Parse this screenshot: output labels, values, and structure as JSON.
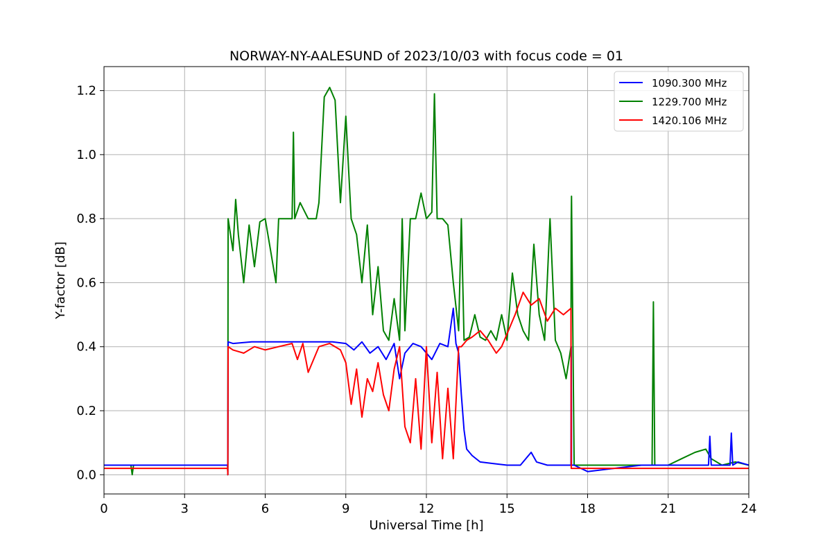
{
  "chart_data": {
    "type": "line",
    "title": "NORWAY-NY-AALESUND of 2023/10/03 with focus code = 01",
    "xlabel": "Universal Time [h]",
    "ylabel": "Y-factor [dB]",
    "xlim": [
      0,
      24
    ],
    "ylim": [
      -0.06,
      1.275
    ],
    "xticks": [
      0,
      3,
      6,
      9,
      12,
      15,
      18,
      21,
      24
    ],
    "yticks": [
      0.0,
      0.2,
      0.4,
      0.6,
      0.8,
      1.0,
      1.2
    ],
    "xtick_labels": [
      "0",
      "3",
      "6",
      "9",
      "12",
      "15",
      "18",
      "21",
      "24"
    ],
    "ytick_labels": [
      "0.0",
      "0.2",
      "0.4",
      "0.6",
      "0.8",
      "1.0",
      "1.2"
    ],
    "grid": true,
    "legend_position": "top-right",
    "series": [
      {
        "name": "1090.300 MHz",
        "color": "#0000ff",
        "x": [
          0.0,
          4.6,
          4.61,
          4.62,
          4.8,
          5.5,
          6.5,
          7.5,
          8.5,
          9.0,
          9.3,
          9.6,
          9.9,
          10.2,
          10.5,
          10.8,
          11.0,
          11.2,
          11.5,
          11.8,
          12.2,
          12.5,
          12.8,
          13.0,
          13.1,
          13.2,
          13.3,
          13.4,
          13.5,
          13.7,
          14.0,
          14.5,
          15.0,
          15.5,
          15.9,
          16.1,
          16.5,
          17.0,
          17.38,
          17.39,
          17.4,
          17.5,
          18.0,
          20.0,
          22.0,
          22.5,
          22.55,
          22.6,
          23.0,
          23.3,
          23.35,
          23.4,
          23.6,
          24.0
        ],
        "y": [
          0.03,
          0.03,
          0.0,
          0.415,
          0.41,
          0.415,
          0.415,
          0.415,
          0.415,
          0.41,
          0.39,
          0.415,
          0.38,
          0.4,
          0.36,
          0.41,
          0.3,
          0.38,
          0.41,
          0.4,
          0.36,
          0.41,
          0.4,
          0.52,
          0.41,
          0.38,
          0.25,
          0.14,
          0.08,
          0.06,
          0.04,
          0.035,
          0.03,
          0.03,
          0.07,
          0.04,
          0.03,
          0.03,
          0.03,
          0.4,
          0.03,
          0.03,
          0.01,
          0.03,
          0.03,
          0.03,
          0.12,
          0.03,
          0.03,
          0.03,
          0.13,
          0.03,
          0.04,
          0.03
        ]
      },
      {
        "name": "1229.700 MHz",
        "color": "#008000",
        "x": [
          0.0,
          1.0,
          1.05,
          1.1,
          4.6,
          4.61,
          4.62,
          4.8,
          4.9,
          5.0,
          5.2,
          5.4,
          5.6,
          5.8,
          6.0,
          6.2,
          6.4,
          6.5,
          6.6,
          6.8,
          7.0,
          7.05,
          7.1,
          7.3,
          7.6,
          7.9,
          8.0,
          8.2,
          8.4,
          8.6,
          8.8,
          9.0,
          9.2,
          9.4,
          9.6,
          9.8,
          10.0,
          10.2,
          10.4,
          10.6,
          10.8,
          11.0,
          11.1,
          11.2,
          11.4,
          11.6,
          11.8,
          12.0,
          12.2,
          12.3,
          12.4,
          12.5,
          12.6,
          12.8,
          13.0,
          13.2,
          13.3,
          13.4,
          13.6,
          13.8,
          14.0,
          14.2,
          14.4,
          14.6,
          14.8,
          15.0,
          15.2,
          15.4,
          15.6,
          15.8,
          16.0,
          16.2,
          16.4,
          16.6,
          16.8,
          17.0,
          17.2,
          17.38,
          17.39,
          17.4,
          17.5,
          18.0,
          20.0,
          20.35,
          20.4,
          20.45,
          20.5,
          21.0,
          21.5,
          22.0,
          22.4,
          22.6,
          23.0,
          23.5,
          24.0
        ],
        "y": [
          0.03,
          0.03,
          0.0,
          0.03,
          0.03,
          0.0,
          0.8,
          0.7,
          0.86,
          0.75,
          0.6,
          0.78,
          0.65,
          0.79,
          0.8,
          0.7,
          0.6,
          0.8,
          0.8,
          0.8,
          0.8,
          1.07,
          0.8,
          0.85,
          0.8,
          0.8,
          0.85,
          1.18,
          1.21,
          1.17,
          0.85,
          1.12,
          0.8,
          0.75,
          0.6,
          0.78,
          0.5,
          0.65,
          0.45,
          0.42,
          0.55,
          0.42,
          0.8,
          0.45,
          0.8,
          0.8,
          0.88,
          0.8,
          0.82,
          1.19,
          0.8,
          0.8,
          0.8,
          0.78,
          0.6,
          0.45,
          0.8,
          0.42,
          0.43,
          0.5,
          0.43,
          0.42,
          0.45,
          0.42,
          0.5,
          0.42,
          0.63,
          0.5,
          0.45,
          0.42,
          0.72,
          0.5,
          0.42,
          0.8,
          0.42,
          0.38,
          0.3,
          0.4,
          0.8,
          0.87,
          0.03,
          0.03,
          0.03,
          0.03,
          0.03,
          0.54,
          0.03,
          0.03,
          0.05,
          0.07,
          0.08,
          0.05,
          0.03,
          0.04,
          0.03
        ]
      },
      {
        "name": "1420.106 MHz",
        "color": "#ff0000",
        "x": [
          0.0,
          4.6,
          4.61,
          4.62,
          4.8,
          5.2,
          5.6,
          6.0,
          6.5,
          7.0,
          7.2,
          7.4,
          7.6,
          8.0,
          8.4,
          8.8,
          9.0,
          9.2,
          9.4,
          9.6,
          9.8,
          10.0,
          10.2,
          10.4,
          10.6,
          10.8,
          11.0,
          11.2,
          11.4,
          11.6,
          11.8,
          12.0,
          12.2,
          12.4,
          12.6,
          12.8,
          13.0,
          13.2,
          13.3,
          13.4,
          13.5,
          13.7,
          14.0,
          14.3,
          14.6,
          14.8,
          15.0,
          15.3,
          15.6,
          15.9,
          16.2,
          16.5,
          16.8,
          17.1,
          17.38,
          17.39,
          17.4,
          17.5,
          18.0,
          20.0,
          22.0,
          24.0
        ],
        "y": [
          0.02,
          0.02,
          0.0,
          0.4,
          0.39,
          0.38,
          0.4,
          0.39,
          0.4,
          0.41,
          0.36,
          0.41,
          0.32,
          0.4,
          0.41,
          0.39,
          0.35,
          0.22,
          0.33,
          0.18,
          0.3,
          0.26,
          0.35,
          0.25,
          0.2,
          0.33,
          0.4,
          0.15,
          0.1,
          0.3,
          0.08,
          0.4,
          0.1,
          0.32,
          0.05,
          0.27,
          0.05,
          0.4,
          0.4,
          0.41,
          0.42,
          0.43,
          0.45,
          0.42,
          0.38,
          0.4,
          0.44,
          0.5,
          0.57,
          0.53,
          0.55,
          0.48,
          0.52,
          0.5,
          0.52,
          0.02,
          0.02,
          0.02,
          0.02,
          0.02,
          0.02,
          0.02
        ]
      }
    ]
  }
}
